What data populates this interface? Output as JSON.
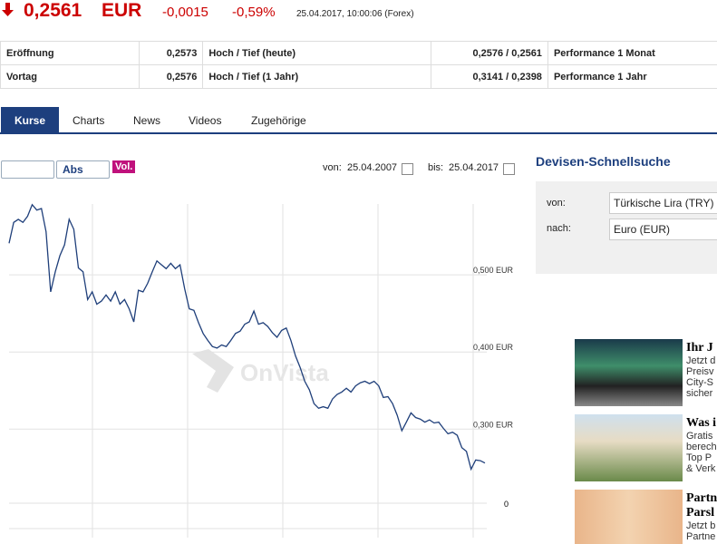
{
  "header": {
    "price": "0,2561",
    "currency": "EUR",
    "change": "-0,0015",
    "change_pct": "-0,59%",
    "timestamp": "25.04.2017, 10:00:06 (Forex)"
  },
  "table": {
    "rows": [
      [
        "Eröffnung",
        "0,2573",
        "Hoch / Tief (heute)",
        "0,2576 / 0,2561",
        "Performance 1 Monat"
      ],
      [
        "Vortag",
        "0,2576",
        "Hoch / Tief (1 Jahr)",
        "0,3141 / 0,2398",
        "Performance 1 Jahr"
      ]
    ]
  },
  "tabs": [
    "Kurse",
    "Charts",
    "News",
    "Videos",
    "Zugehörige"
  ],
  "toolbar": {
    "mode": "Abs",
    "volume": "Vol.",
    "from_label": "von:",
    "from": "25.04.2007",
    "to_label": "bis:",
    "to": "25.04.2017"
  },
  "chart": {
    "type": "line",
    "color": "#1f3f7a",
    "watermark": "OnVista",
    "volume_tick": "0",
    "ylim": [
      0.171,
      0.633
    ],
    "yticks": [
      {
        "value": 0.5,
        "label": "0,500 EUR"
      },
      {
        "value": 0.4,
        "label": "0,400 EUR"
      },
      {
        "value": 0.3,
        "label": "0,300 EUR"
      }
    ],
    "values": [
      0.541,
      0.568,
      0.572,
      0.568,
      0.576,
      0.591,
      0.584,
      0.586,
      0.556,
      0.478,
      0.504,
      0.525,
      0.539,
      0.572,
      0.559,
      0.509,
      0.504,
      0.468,
      0.478,
      0.462,
      0.466,
      0.474,
      0.466,
      0.478,
      0.462,
      0.468,
      0.456,
      0.439,
      0.48,
      0.478,
      0.489,
      0.504,
      0.518,
      0.513,
      0.508,
      0.515,
      0.508,
      0.513,
      0.482,
      0.456,
      0.454,
      0.438,
      0.424,
      0.415,
      0.407,
      0.405,
      0.409,
      0.407,
      0.415,
      0.424,
      0.427,
      0.436,
      0.439,
      0.453,
      0.436,
      0.438,
      0.433,
      0.425,
      0.419,
      0.428,
      0.431,
      0.415,
      0.395,
      0.38,
      0.362,
      0.351,
      0.333,
      0.327,
      0.329,
      0.327,
      0.339,
      0.345,
      0.348,
      0.353,
      0.348,
      0.356,
      0.36,
      0.362,
      0.359,
      0.362,
      0.356,
      0.341,
      0.342,
      0.333,
      0.318,
      0.298,
      0.309,
      0.321,
      0.315,
      0.313,
      0.309,
      0.312,
      0.308,
      0.309,
      0.301,
      0.294,
      0.296,
      0.292,
      0.276,
      0.271,
      0.248,
      0.26,
      0.259,
      0.256
    ]
  },
  "search": {
    "title": "Devisen-Schnellsuche",
    "from_label": "von:",
    "from": "Türkische Lira (TRY)",
    "to_label": "nach:",
    "to": "Euro (EUR)"
  },
  "ads": [
    {
      "title": "Ihr J",
      "lines": [
        "Jetzt d",
        "Preisv",
        "City-S",
        "sicher"
      ]
    },
    {
      "title": "Was i",
      "lines": [
        "Gratis",
        "berech",
        "Top P",
        "& Verk"
      ]
    },
    {
      "title": "Partn",
      "title2": "Parsl",
      "lines": [
        "Jetzt b",
        "Partne"
      ]
    }
  ]
}
